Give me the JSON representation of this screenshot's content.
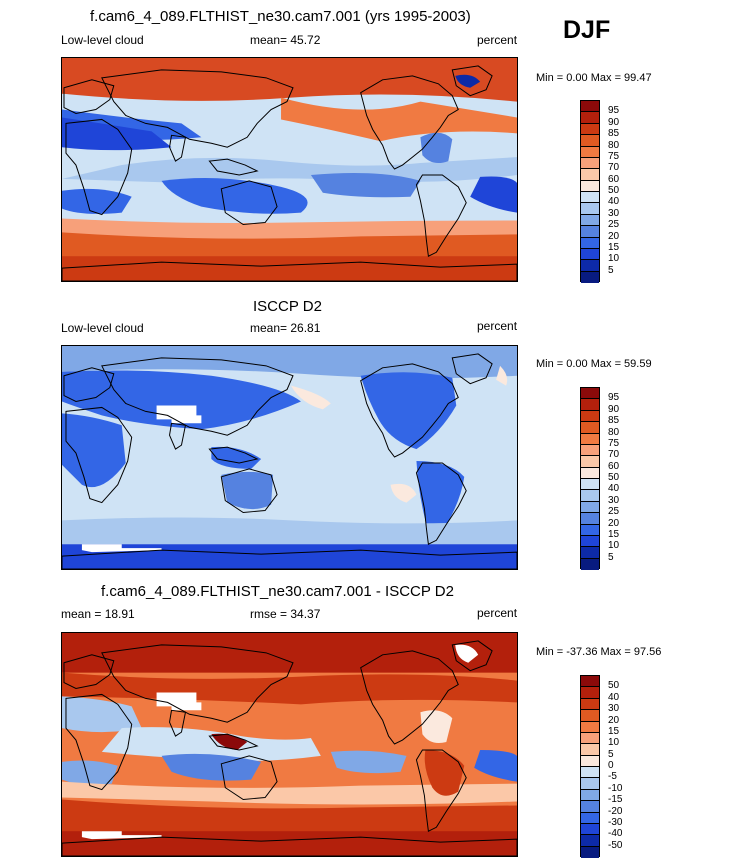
{
  "season": "DJF",
  "panels": [
    {
      "title": "f.cam6_4_089.FLTHIST_ne30.cam7.001 (yrs 1995-2003)",
      "left_label": "Low-level cloud",
      "center_label": "mean=  45.72",
      "right_label": "percent",
      "minmax": "Min =   0.00 Max =  99.47",
      "colorbar_labels": [
        "95",
        "90",
        "85",
        "80",
        "75",
        "70",
        "60",
        "50",
        "40",
        "30",
        "25",
        "20",
        "15",
        "10",
        "5"
      ],
      "colorbar_colors": [
        "#8b0a0a",
        "#b3200c",
        "#cc3a12",
        "#e05a22",
        "#f07a42",
        "#f7a07a",
        "#fbc8a8",
        "#fbe9de",
        "#cfe3f5",
        "#a9c8ee",
        "#80a8e6",
        "#5582e0",
        "#3366e6",
        "#1f45d8",
        "#0d2aa8",
        "#081b80"
      ]
    },
    {
      "title": "ISCCP D2",
      "left_label": "Low-level cloud",
      "center_label": "mean=  26.81",
      "right_label": "percent",
      "minmax": "Min =   0.00 Max =  59.59",
      "colorbar_labels": [
        "95",
        "90",
        "85",
        "80",
        "75",
        "70",
        "60",
        "50",
        "40",
        "30",
        "25",
        "20",
        "15",
        "10",
        "5"
      ],
      "colorbar_colors": [
        "#8b0a0a",
        "#b3200c",
        "#cc3a12",
        "#e05a22",
        "#f07a42",
        "#f7a07a",
        "#fbc8a8",
        "#fbe9de",
        "#cfe3f5",
        "#a9c8ee",
        "#80a8e6",
        "#5582e0",
        "#3366e6",
        "#1f45d8",
        "#0d2aa8",
        "#081b80"
      ]
    },
    {
      "title": "f.cam6_4_089.FLTHIST_ne30.cam7.001 - ISCCP D2",
      "left_label": "mean =  18.91",
      "center_label": "rmse =  34.37",
      "right_label": "percent",
      "minmax": "Min = -37.36 Max =  97.56",
      "colorbar_labels": [
        "50",
        "40",
        "30",
        "20",
        "15",
        "10",
        "5",
        "0",
        "-5",
        "-10",
        "-15",
        "-20",
        "-30",
        "-40",
        "-50"
      ],
      "colorbar_colors": [
        "#8b0a0a",
        "#b3200c",
        "#cc3a12",
        "#e05a22",
        "#f07a42",
        "#f7a07a",
        "#fbc8a8",
        "#fbe9de",
        "#cfe3f5",
        "#a9c8ee",
        "#80a8e6",
        "#5582e0",
        "#3366e6",
        "#1f45d8",
        "#0d2aa8",
        "#081b80"
      ]
    }
  ]
}
